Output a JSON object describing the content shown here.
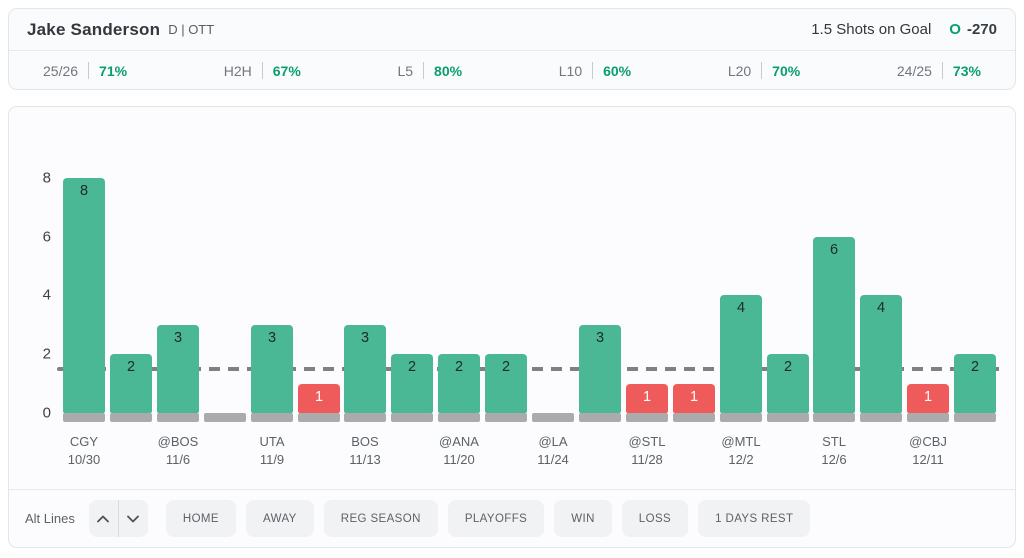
{
  "header": {
    "player_name": "Jake Sanderson",
    "position_team": "D | OTT",
    "prop_label": "1.5 Shots on Goal",
    "odds_side": "O",
    "odds_value": "-270"
  },
  "stats": [
    {
      "label": "25/26",
      "value": "71%"
    },
    {
      "label": "H2H",
      "value": "67%"
    },
    {
      "label": "L5",
      "value": "80%"
    },
    {
      "label": "L10",
      "value": "60%"
    },
    {
      "label": "L20",
      "value": "70%"
    },
    {
      "label": "24/25",
      "value": "73%"
    }
  ],
  "chart_data": {
    "type": "bar",
    "title": "",
    "ylabel": "",
    "xlabel": "",
    "ylim": [
      0,
      8
    ],
    "y_ticks": [
      0,
      2,
      4,
      6,
      8
    ],
    "prop_line": 1.5,
    "grid": false,
    "bars": [
      {
        "value": 8,
        "state": "over",
        "opponent": "CGY",
        "date": "10/30"
      },
      {
        "value": 2,
        "state": "over",
        "opponent": "",
        "date": ""
      },
      {
        "value": 3,
        "state": "over",
        "opponent": "@BOS",
        "date": "11/6"
      },
      {
        "value": 0,
        "state": "zero",
        "opponent": "",
        "date": ""
      },
      {
        "value": 3,
        "state": "over",
        "opponent": "UTA",
        "date": "11/9"
      },
      {
        "value": 1,
        "state": "under",
        "opponent": "",
        "date": ""
      },
      {
        "value": 3,
        "state": "over",
        "opponent": "BOS",
        "date": "11/13"
      },
      {
        "value": 2,
        "state": "over",
        "opponent": "",
        "date": ""
      },
      {
        "value": 2,
        "state": "over",
        "opponent": "@ANA",
        "date": "11/20"
      },
      {
        "value": 2,
        "state": "over",
        "opponent": "",
        "date": ""
      },
      {
        "value": 0,
        "state": "zero",
        "opponent": "@LA",
        "date": "11/24"
      },
      {
        "value": 3,
        "state": "over",
        "opponent": "",
        "date": ""
      },
      {
        "value": 1,
        "state": "under",
        "opponent": "@STL",
        "date": "11/28"
      },
      {
        "value": 1,
        "state": "under",
        "opponent": "",
        "date": ""
      },
      {
        "value": 4,
        "state": "over",
        "opponent": "@MTL",
        "date": "12/2"
      },
      {
        "value": 2,
        "state": "over",
        "opponent": "",
        "date": ""
      },
      {
        "value": 6,
        "state": "over",
        "opponent": "STL",
        "date": "12/6"
      },
      {
        "value": 4,
        "state": "over",
        "opponent": "",
        "date": ""
      },
      {
        "value": 1,
        "state": "under",
        "opponent": "@CBJ",
        "date": "12/11"
      },
      {
        "value": 2,
        "state": "over",
        "opponent": "",
        "date": ""
      }
    ]
  },
  "controls": {
    "alt_lines_label": "Alt Lines",
    "filters": [
      "HOME",
      "AWAY",
      "REG SEASON",
      "PLAYOFFS",
      "WIN",
      "LOSS",
      "1 DAYS REST"
    ]
  },
  "colors": {
    "bar_over": "#4ab795",
    "bar_under": "#ef5b5b",
    "bar_base_gray": "#ababab",
    "prop_line_gray": "#7e8084",
    "accent_green": "#0a9e6e",
    "value_text_dark": "#23292e",
    "value_text_light": "#ffffff"
  }
}
